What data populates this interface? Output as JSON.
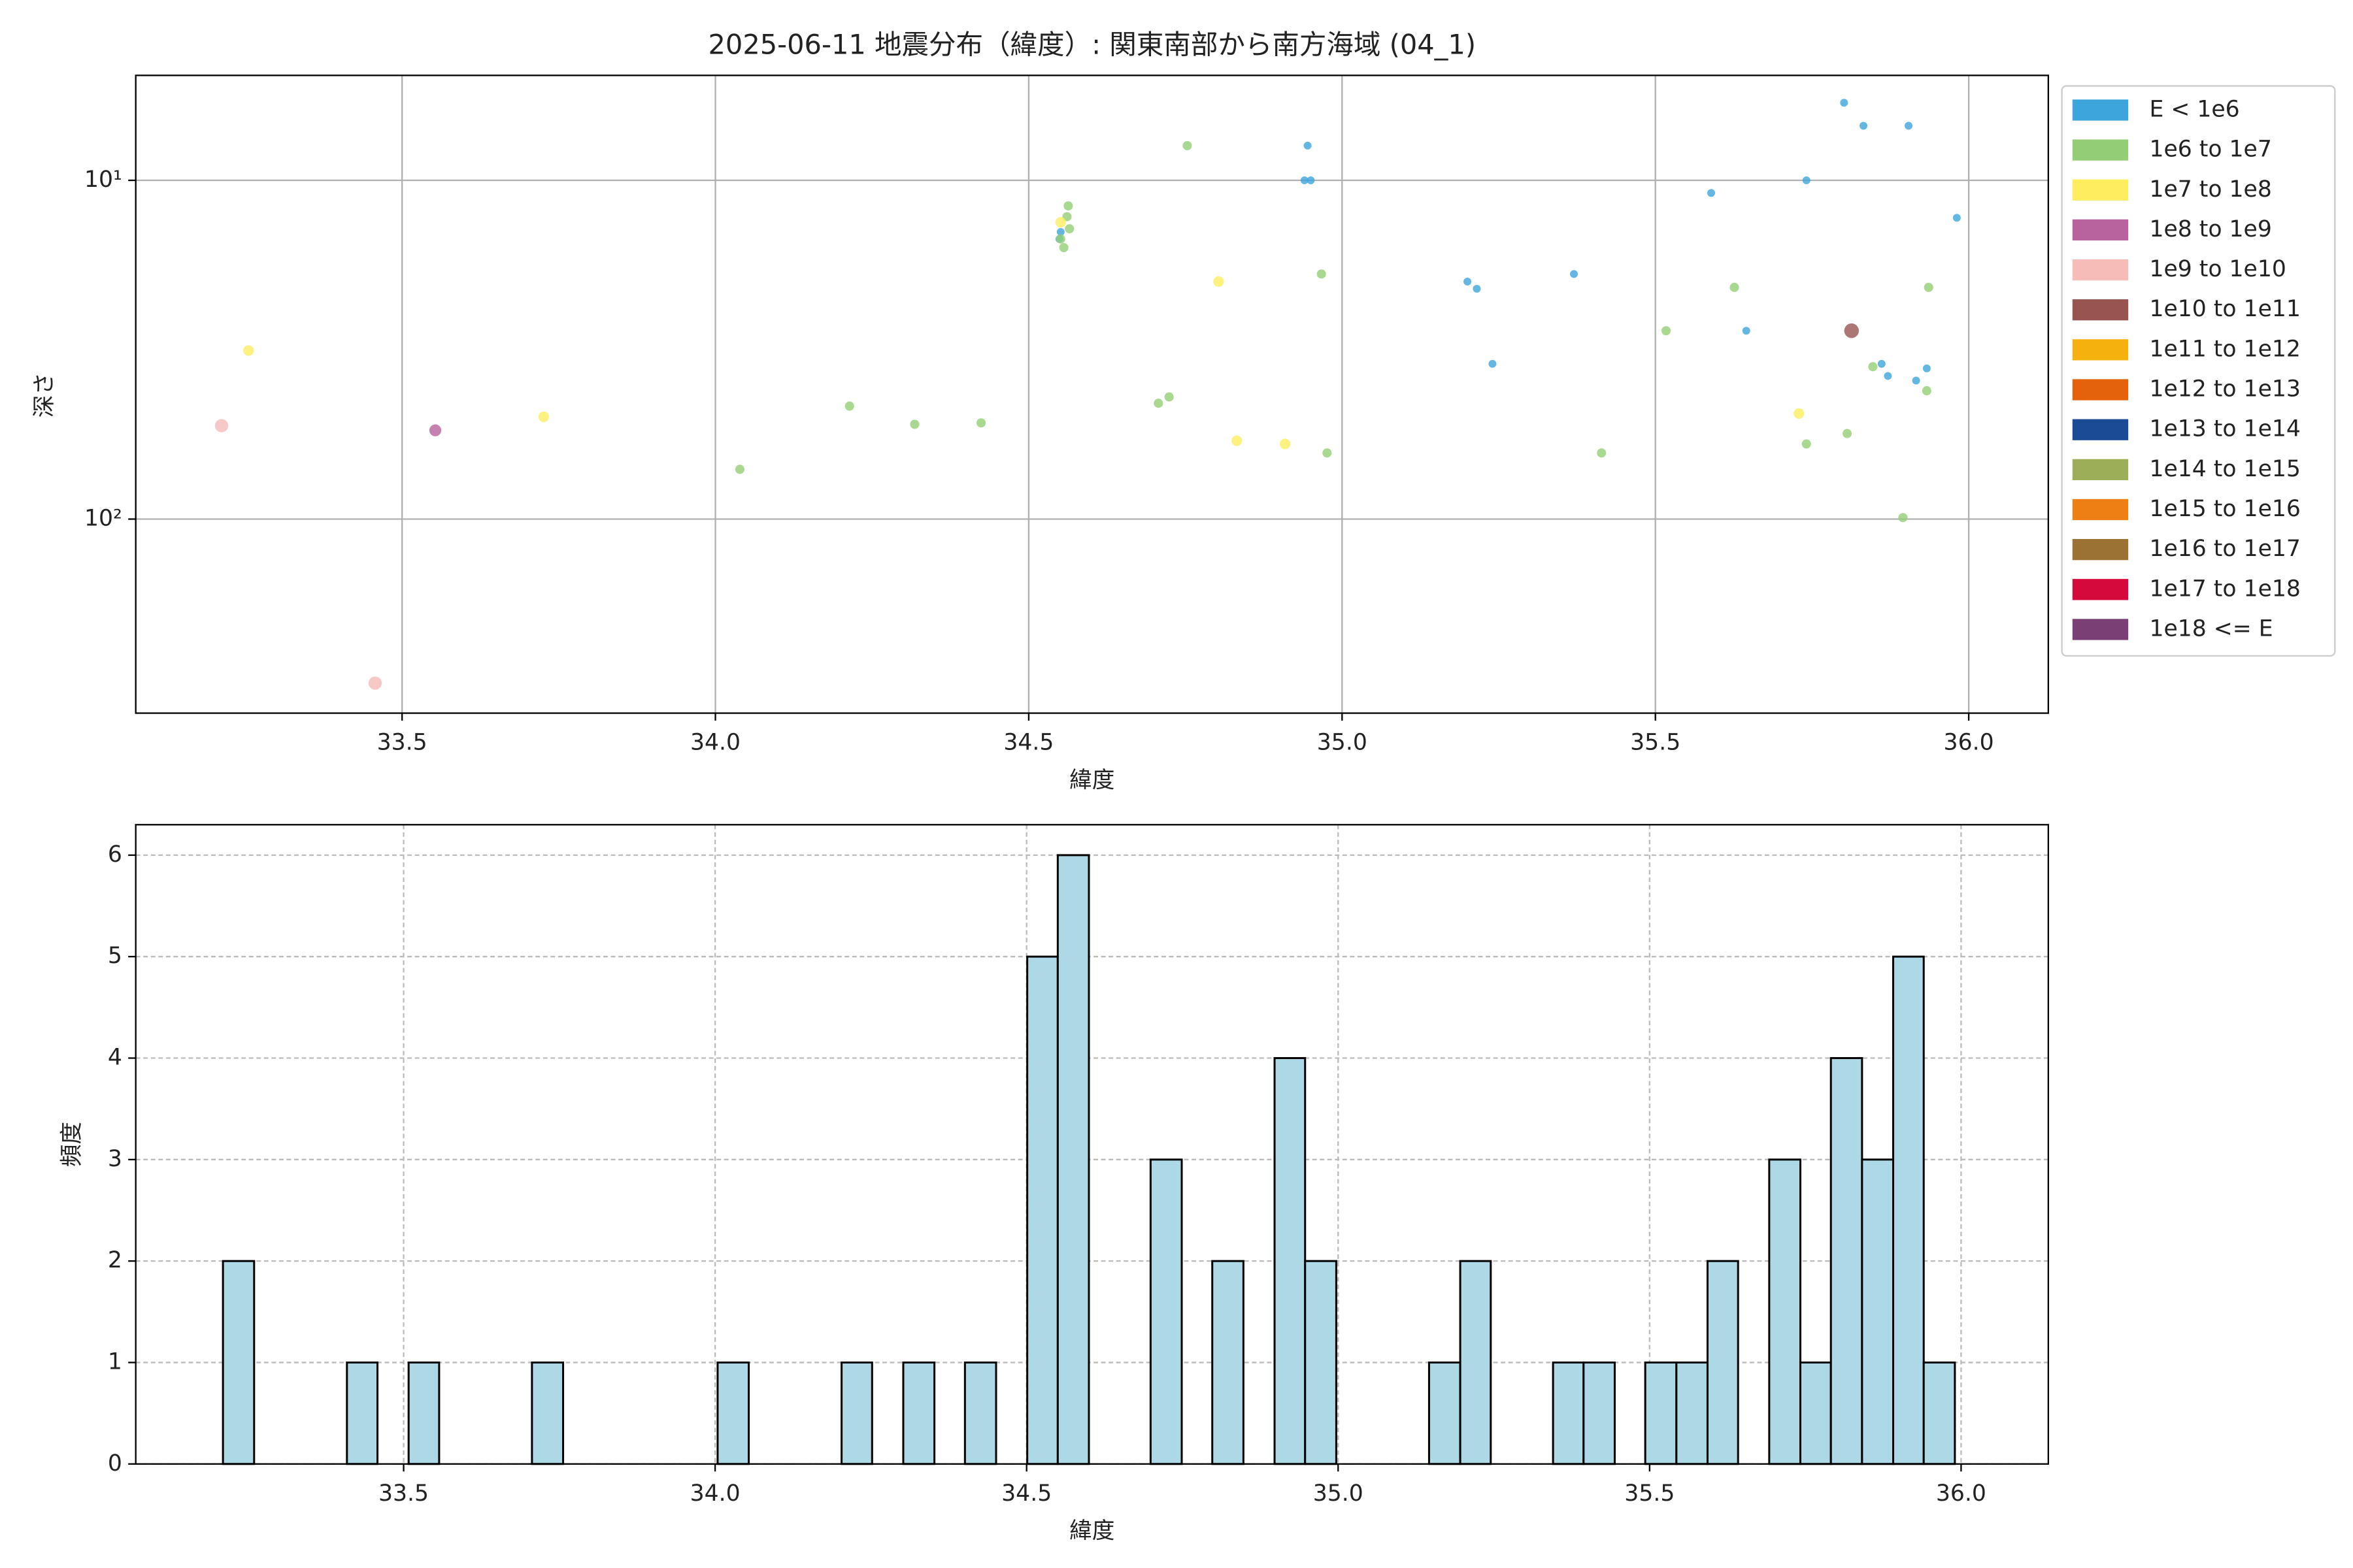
{
  "chart_data": [
    {
      "type": "scatter",
      "title": "2025-06-11 地震分布（緯度）: 関東南部から南方海域 (04_1)",
      "xlabel": "緯度",
      "ylabel": "深さ",
      "xlim": [
        33.075,
        36.127
      ],
      "ylim": [
        4.9,
        374
      ],
      "y_log": true,
      "y_inverted": true,
      "grid": true,
      "legend": "outside right",
      "xticks": [
        33.5,
        {
          "value": 34.0,
          "label": "34.0"
        },
        34.5,
        {
          "value": 35.0,
          "label": "35.0"
        },
        35.5,
        {
          "value": 36.0,
          "label": "36.0"
        }
      ],
      "yticks": [
        {
          "value": 10,
          "label": "10¹"
        },
        {
          "value": 100,
          "label": "10²"
        }
      ],
      "series": [
        {
          "name": "E < 1e6",
          "color": "#3ea5dc",
          "x": [
            35.801,
            35.832,
            35.904,
            35.589,
            35.741,
            35.981,
            34.945,
            34.94,
            34.95,
            35.2,
            35.215,
            35.37,
            35.645,
            35.24,
            35.861,
            35.871,
            35.933,
            35.916,
            34.549,
            34.551
          ],
          "values": [
            5.9,
            6.9,
            6.9,
            10.9,
            10,
            12.9,
            7.9,
            10,
            10,
            19.9,
            20.9,
            18.9,
            27.8,
            34.8,
            34.8,
            37.8,
            35.9,
            39,
            14.9,
            14.2
          ]
        },
        {
          "name": "1e6 to 1e7",
          "color": "#93ce76",
          "x": [
            34.753,
            34.563,
            34.561,
            34.565,
            34.551,
            34.556,
            34.967,
            35.626,
            35.936,
            35.517,
            34.214,
            34.707,
            34.724,
            34.318,
            34.424,
            35.847,
            35.933,
            35.741,
            35.806,
            34.976,
            35.414,
            34.039,
            35.895
          ],
          "values": [
            7.9,
            11.9,
            12.8,
            13.9,
            14.9,
            15.8,
            18.9,
            20.7,
            20.7,
            27.8,
            46.4,
            45.5,
            43.6,
            52.5,
            52,
            35.5,
            41.8,
            60,
            55.9,
            63.8,
            63.8,
            71.3,
            99
          ]
        },
        {
          "name": "1e7 to 1e8",
          "color": "#fded5f",
          "x": [
            33.255,
            33.726,
            34.803,
            34.832,
            34.909,
            35.729,
            34.551
          ],
          "values": [
            31.8,
            49.9,
            19.9,
            58.7,
            60,
            48.8,
            13.3
          ]
        },
        {
          "name": "1e8 to 1e9",
          "color": "#b8629e",
          "x": [
            33.553
          ],
          "values": [
            54.7
          ]
        },
        {
          "name": "1e9 to 1e10",
          "color": "#f5bcb8",
          "x": [
            33.212,
            33.457
          ],
          "values": [
            53,
            305
          ]
        },
        {
          "name": "1e10 to 1e11",
          "color": "#975450",
          "x": [
            35.813
          ],
          "values": [
            27.8
          ]
        },
        {
          "name": "1e11 to 1e12",
          "color": "#f5b20f",
          "x": [],
          "values": []
        },
        {
          "name": "1e12 to 1e13",
          "color": "#e5620c",
          "x": [],
          "values": []
        },
        {
          "name": "1e13 to 1e14",
          "color": "#1c4b95",
          "x": [],
          "values": []
        },
        {
          "name": "1e14 to 1e15",
          "color": "#9cae58",
          "x": [],
          "values": []
        },
        {
          "name": "1e15 to 1e16",
          "color": "#ee7f14",
          "x": [],
          "values": []
        },
        {
          "name": "1e16 to 1e17",
          "color": "#9b7134",
          "x": [],
          "values": []
        },
        {
          "name": "1e17 to 1e18",
          "color": "#d5093c",
          "x": [],
          "values": []
        },
        {
          "name": "1e18 <= E",
          "color": "#7a3f75",
          "x": [],
          "values": []
        }
      ]
    },
    {
      "type": "histogram",
      "xlabel": "緯度",
      "ylabel": "頻度",
      "color": "#add8e6",
      "edgecolor": "#000000",
      "grid": true,
      "xlim": [
        33.07,
        36.14
      ],
      "ylim": [
        0,
        6.3
      ],
      "xticks": [
        33.5,
        {
          "value": 34.0,
          "label": "34.0"
        },
        34.5,
        {
          "value": 35.0,
          "label": "35.0"
        },
        35.5,
        {
          "value": 36.0,
          "label": "36.0"
        }
      ],
      "yticks": [
        0,
        1,
        2,
        3,
        4,
        5,
        6
      ],
      "bins": [
        33.21,
        33.26,
        33.309,
        33.359,
        33.409,
        33.458,
        33.508,
        33.557,
        33.607,
        33.657,
        33.706,
        33.756,
        33.806,
        33.855,
        33.905,
        33.955,
        34.004,
        34.054,
        34.104,
        34.153,
        34.203,
        34.252,
        34.302,
        34.352,
        34.401,
        34.451,
        34.501,
        34.55,
        34.6,
        34.65,
        34.699,
        34.749,
        34.798,
        34.848,
        34.898,
        34.947,
        34.997,
        35.047,
        35.096,
        35.146,
        35.196,
        35.245,
        35.295,
        35.345,
        35.394,
        35.444,
        35.493,
        35.543,
        35.593,
        35.642,
        35.692,
        35.742,
        35.791,
        35.841,
        35.891,
        35.94,
        35.99
      ],
      "values": [
        2,
        0,
        0,
        0,
        1,
        0,
        1,
        0,
        0,
        0,
        1,
        0,
        0,
        0,
        0,
        0,
        1,
        0,
        0,
        0,
        1,
        0,
        1,
        0,
        1,
        0,
        5,
        6,
        0,
        0,
        3,
        0,
        2,
        0,
        4,
        2,
        0,
        0,
        0,
        1,
        2,
        0,
        0,
        1,
        1,
        0,
        1,
        1,
        2,
        0,
        3,
        1,
        4,
        3,
        5,
        1
      ]
    }
  ]
}
